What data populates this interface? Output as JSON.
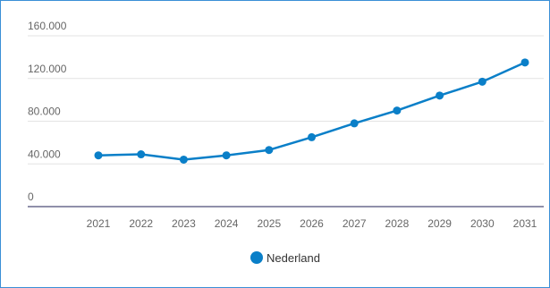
{
  "chart_data": {
    "type": "line",
    "title": "",
    "xlabel": "",
    "ylabel": "",
    "categories": [
      "2021",
      "2022",
      "2023",
      "2024",
      "2025",
      "2026",
      "2027",
      "2028",
      "2029",
      "2030",
      "2031"
    ],
    "series": [
      {
        "name": "Nederland",
        "color": "#0a7fc8",
        "values": [
          48000,
          49000,
          44000,
          48000,
          53000,
          65000,
          78000,
          90000,
          104000,
          117000,
          135000
        ]
      }
    ],
    "ylim": [
      0,
      160000
    ],
    "y_ticks": [
      0,
      40000,
      80000,
      120000,
      160000
    ],
    "y_tick_labels": [
      "0",
      "40.000",
      "80.000",
      "120.000",
      "160.000"
    ],
    "grid": true,
    "legend_position": "bottom-center"
  },
  "colors": {
    "grid": "#e3e3e3",
    "axis": "#6b6b8e",
    "frame": "#3a8fd6"
  }
}
